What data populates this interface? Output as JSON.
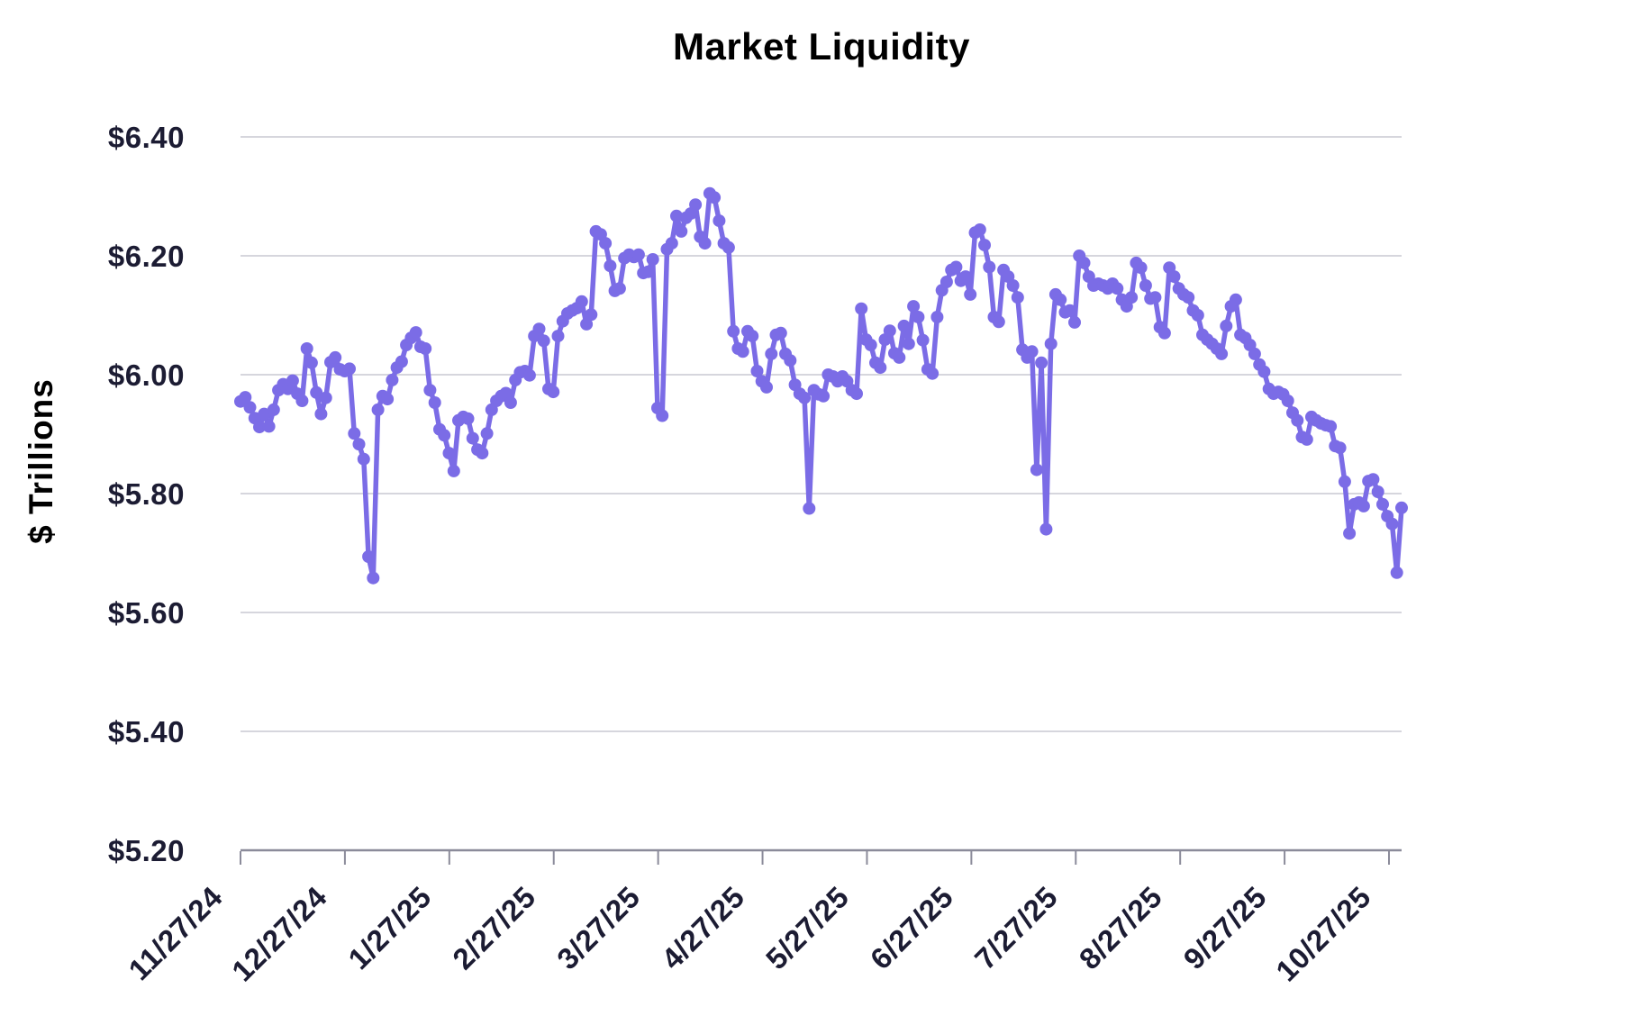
{
  "chart": {
    "title": "Market Liquidity",
    "y_axis_label": "$ Trillions",
    "y_tick_labels": [
      "$6.40",
      "$6.20",
      "$6.00",
      "$5.80",
      "$5.60",
      "$5.40",
      "$5.20"
    ],
    "x_tick_labels": [
      "11/27/24",
      "12/27/24",
      "1/27/25",
      "2/27/25",
      "3/27/25",
      "4/27/25",
      "5/27/25",
      "6/27/25",
      "7/27/25",
      "8/27/25",
      "9/27/25",
      "10/27/25"
    ],
    "colors": {
      "line": "#7b6ce6",
      "marker": "#7b6ce6",
      "text": "#1c1c33",
      "gridline": "#c9c9d2",
      "axis": "#8b8b9a",
      "background": "#ffffff"
    }
  },
  "chart_data": {
    "type": "line",
    "title": "Market Liquidity",
    "xlabel": "",
    "ylabel": "$ Trillions",
    "ylim": [
      5.2,
      6.4
    ],
    "y_ticks": [
      6.4,
      6.2,
      6.0,
      5.8,
      5.6,
      5.4,
      5.2
    ],
    "x_tick_labels": [
      "11/27/24",
      "12/27/24",
      "1/27/25",
      "2/27/25",
      "3/27/25",
      "4/27/25",
      "5/27/25",
      "6/27/25",
      "7/27/25",
      "8/27/25",
      "9/27/25",
      "10/27/25"
    ],
    "grid": "horizontal",
    "legend": "none",
    "marker": "circle",
    "series": [
      {
        "name": "Market Liquidity ($ Trillions)",
        "values": [
          5.955,
          5.962,
          5.945,
          5.927,
          5.912,
          5.934,
          5.913,
          5.941,
          5.974,
          5.984,
          5.976,
          5.99,
          5.968,
          5.956,
          6.044,
          6.02,
          5.97,
          5.934,
          5.961,
          6.021,
          6.029,
          6.009,
          6.006,
          6.01,
          5.901,
          5.883,
          5.858,
          5.694,
          5.658,
          5.941,
          5.964,
          5.959,
          5.991,
          6.012,
          6.022,
          6.05,
          6.062,
          6.071,
          6.047,
          6.044,
          5.974,
          5.953,
          5.908,
          5.898,
          5.868,
          5.838,
          5.923,
          5.929,
          5.926,
          5.893,
          5.874,
          5.868,
          5.901,
          5.941,
          5.956,
          5.964,
          5.969,
          5.953,
          5.991,
          6.004,
          6.006,
          5.999,
          6.065,
          6.077,
          6.057,
          5.976,
          5.971,
          6.065,
          6.09,
          6.103,
          6.108,
          6.112,
          6.123,
          6.085,
          6.101,
          6.241,
          6.236,
          6.221,
          6.183,
          6.141,
          6.145,
          6.196,
          6.202,
          6.198,
          6.202,
          6.171,
          6.173,
          6.194,
          5.944,
          5.931,
          6.211,
          6.221,
          6.267,
          6.241,
          6.264,
          6.271,
          6.286,
          6.232,
          6.221,
          6.305,
          6.298,
          6.259,
          6.221,
          6.214,
          6.073,
          6.044,
          6.039,
          6.073,
          6.065,
          6.006,
          5.989,
          5.979,
          6.035,
          6.067,
          6.07,
          6.035,
          6.024,
          5.983,
          5.968,
          5.961,
          5.775,
          5.974,
          5.967,
          5.964,
          6.0,
          5.997,
          5.989,
          5.997,
          5.989,
          5.974,
          5.968,
          6.111,
          6.059,
          6.05,
          6.02,
          6.012,
          6.059,
          6.074,
          6.036,
          6.029,
          6.082,
          6.052,
          6.115,
          6.097,
          6.058,
          6.009,
          6.002,
          6.097,
          6.142,
          6.156,
          6.176,
          6.181,
          6.158,
          6.165,
          6.135,
          6.239,
          6.244,
          6.218,
          6.181,
          6.097,
          6.089,
          6.176,
          6.165,
          6.15,
          6.13,
          6.042,
          6.029,
          6.039,
          5.84,
          6.02,
          5.74,
          6.052,
          6.135,
          6.126,
          6.105,
          6.108,
          6.088,
          6.2,
          6.188,
          6.165,
          6.15,
          6.153,
          6.15,
          6.145,
          6.153,
          6.145,
          6.126,
          6.115,
          6.13,
          6.188,
          6.18,
          6.15,
          6.128,
          6.13,
          6.08,
          6.07,
          6.18,
          6.165,
          6.145,
          6.135,
          6.13,
          6.108,
          6.1,
          6.067,
          6.059,
          6.052,
          6.044,
          6.035,
          6.082,
          6.115,
          6.126,
          6.067,
          6.062,
          6.05,
          6.035,
          6.017,
          6.005,
          5.976,
          5.968,
          5.971,
          5.967,
          5.956,
          5.936,
          5.923,
          5.895,
          5.891,
          5.929,
          5.923,
          5.918,
          5.915,
          5.913,
          5.88,
          5.877,
          5.82,
          5.733,
          5.782,
          5.785,
          5.779,
          5.821,
          5.824,
          5.803,
          5.782,
          5.762,
          5.749,
          5.667,
          5.776
        ]
      }
    ]
  }
}
